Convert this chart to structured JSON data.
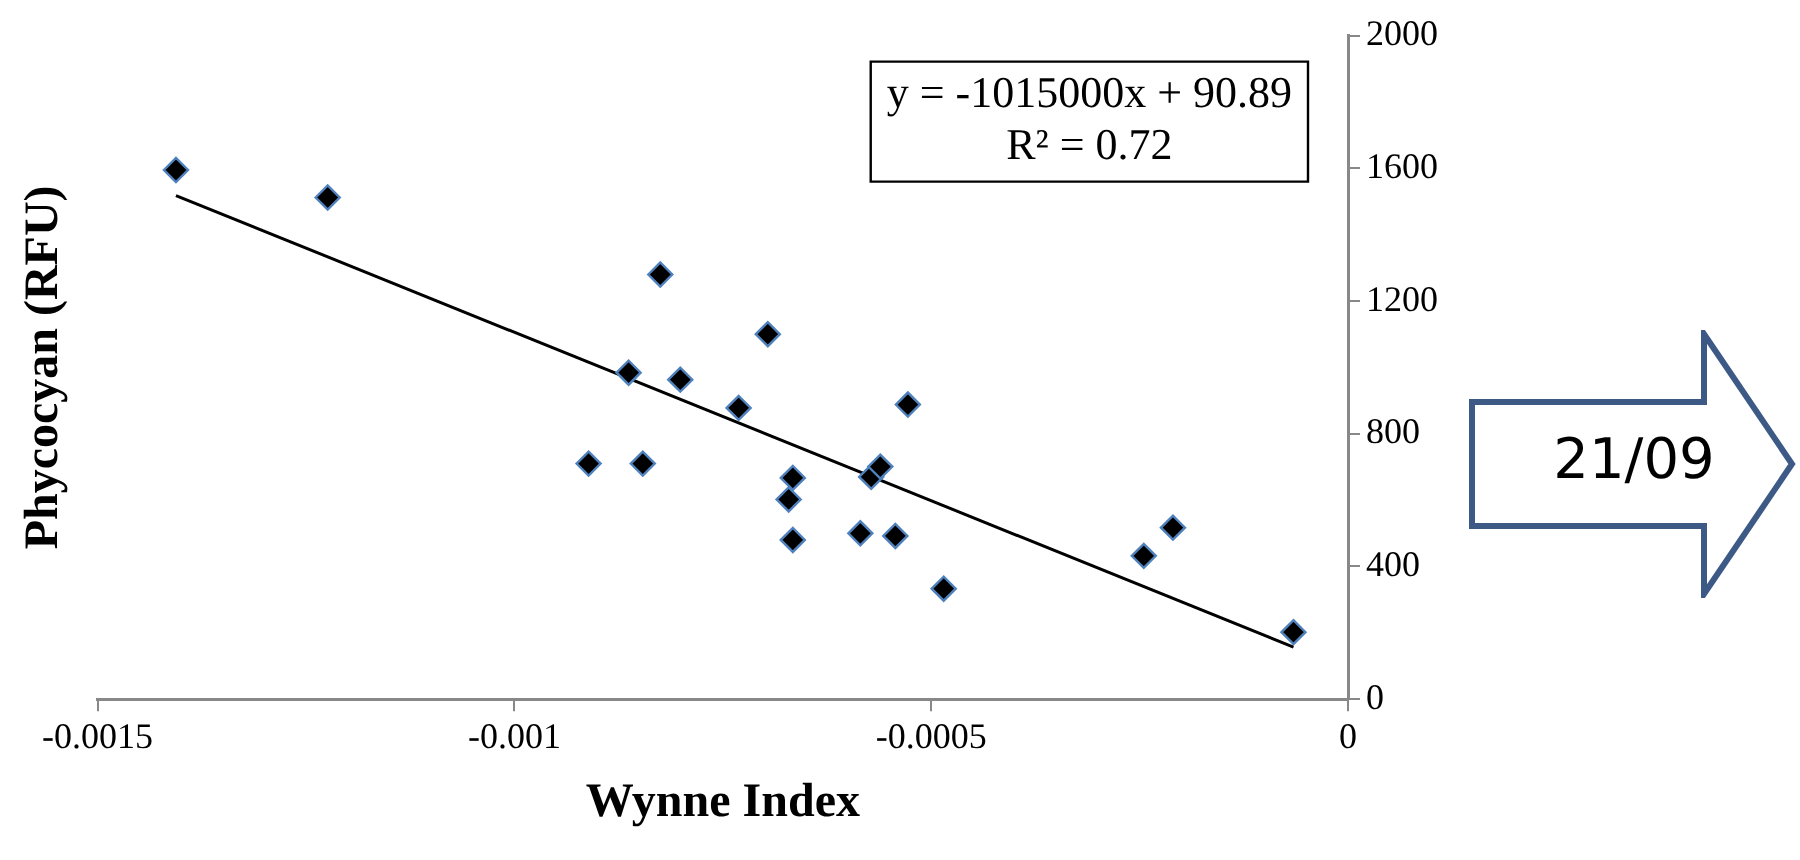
{
  "chart_data": {
    "type": "scatter",
    "xlabel": "Wynne Index",
    "ylabel": "Phycocyan (RFU)",
    "annotations": [
      "y = -1015000x + 90.89",
      "R² = 0.72",
      "21/09"
    ],
    "series": [
      {
        "marker": "diamond",
        "color": "#000000",
        "x": [
          -0.001406,
          -0.001224,
          -0.000825,
          -0.000863,
          -0.000801,
          -0.000731,
          -0.000911,
          -0.000846,
          -0.000696,
          -0.000528,
          -0.000666,
          -0.000671,
          -0.000666,
          -0.000572,
          -0.000561,
          -0.000585,
          -0.000543,
          -0.000485,
          -0.000245,
          -0.00021,
          -6.54e-05
        ],
        "values": [
          1595,
          1512,
          1280,
          984,
          963,
          878,
          710,
          710,
          1100,
          888,
          667,
          602,
          480,
          670,
          701,
          500,
          492,
          333,
          432,
          517,
          202
        ]
      },
      {
        "type": "line",
        "marker": "none",
        "color": "#000000",
        "x": [
          -0.001406,
          -6.54e-05
        ],
        "values": [
          1518,
          157
        ]
      }
    ],
    "xlim": [
      -0.0015,
      0
    ],
    "xticks": [
      -0.0015,
      -0.001,
      -0.0005,
      0
    ],
    "ylim": [
      0,
      2000
    ],
    "yticks": [
      0,
      400,
      800,
      1200,
      1600,
      2000
    ],
    "legend": false
  }
}
